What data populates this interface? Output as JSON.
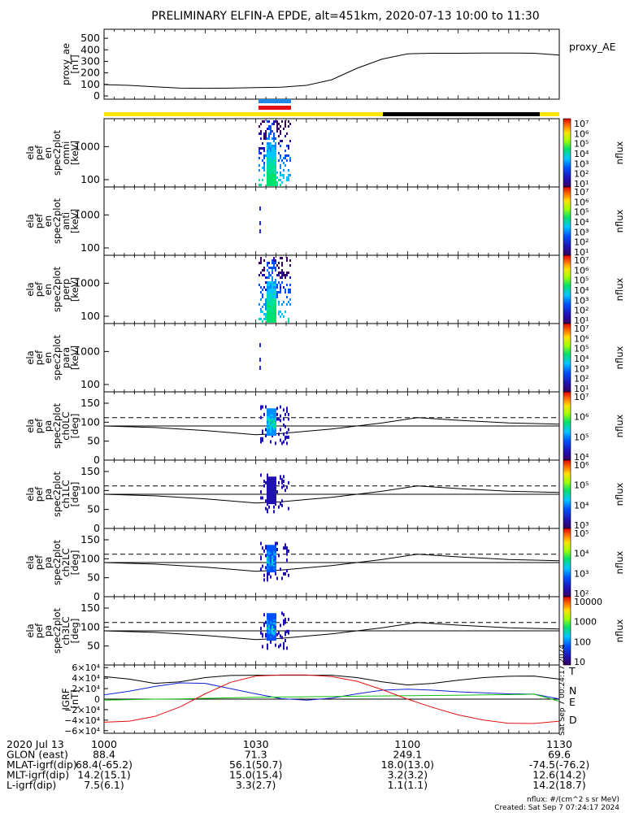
{
  "title": "PRELIMINARY ELFIN-A EPDE, alt=451km, 2020-07-13 10:00 to 11:30",
  "colors": {
    "orbit_yellow": "#ffe500",
    "orbit_black": "#000000",
    "science_blue": "#1e88e5",
    "science_red": "#e01010",
    "grf_T": "#000000",
    "grf_N": "#1020d0",
    "grf_E": "#10c010",
    "grf_D": "#e01010"
  },
  "chart_data": [
    {
      "type": "line",
      "panel": "proxy_ae",
      "ylabel": [
        "proxy_ae",
        "[nT]"
      ],
      "legend": "proxy_AE",
      "yticks": [
        "500",
        "400",
        "300",
        "200",
        "100",
        "0"
      ],
      "ylim": [
        0,
        550
      ],
      "x_minutes": [
        0,
        5,
        10,
        15,
        20,
        25,
        30,
        35,
        40,
        45,
        50,
        55,
        60,
        65,
        70,
        75,
        80,
        85,
        90
      ],
      "values": [
        98,
        92,
        80,
        68,
        66,
        68,
        72,
        76,
        92,
        140,
        240,
        320,
        365,
        370,
        370,
        372,
        372,
        370,
        355
      ]
    },
    {
      "type": "heatmap",
      "panel": "energy-omni",
      "ylabel": [
        "ela",
        "pef",
        "en",
        "spec2plot",
        "omni",
        "[keV]"
      ],
      "yticks": [
        "1000",
        "100"
      ],
      "colorbar": {
        "label": "nflux",
        "ticks": [
          "10⁷",
          "10⁶",
          "10⁵",
          "10⁴",
          "10³",
          "10²",
          "10¹"
        ]
      }
    },
    {
      "type": "heatmap",
      "panel": "energy-anti",
      "ylabel": [
        "ela",
        "pef",
        "en",
        "spec2plot",
        "anti",
        "[keV]"
      ],
      "yticks": [
        "1000",
        "100"
      ],
      "colorbar": {
        "label": "nflux",
        "ticks": [
          "10⁷",
          "10⁶",
          "10⁵",
          "10⁴",
          "10³",
          "10²",
          "10¹"
        ]
      }
    },
    {
      "type": "heatmap",
      "panel": "energy-perp",
      "ylabel": [
        "ela",
        "pef",
        "en",
        "spec2plot",
        "perp",
        "[keV]"
      ],
      "yticks": [
        "1000",
        "100"
      ],
      "colorbar": {
        "label": "nflux",
        "ticks": [
          "10⁷",
          "10⁶",
          "10⁵",
          "10⁴",
          "10³",
          "10²",
          "10¹"
        ]
      }
    },
    {
      "type": "heatmap",
      "panel": "energy-para",
      "ylabel": [
        "ela",
        "pef",
        "en",
        "spec2plot",
        "para",
        "[keV]"
      ],
      "yticks": [
        "1000",
        "100"
      ],
      "colorbar": {
        "label": "nflux",
        "ticks": [
          "10⁷",
          "10⁶",
          "10⁵",
          "10⁴",
          "10³",
          "10²",
          "10¹"
        ]
      }
    },
    {
      "type": "heatmap",
      "panel": "pitch-ch0",
      "ylabel": [
        "ela",
        "pef",
        "pa",
        "spec2plot",
        "ch0LC",
        "[deg]"
      ],
      "yticks": [
        "150",
        "100",
        "50",
        "0"
      ],
      "ylim": [
        0,
        180
      ],
      "colorbar": {
        "label": "nflux",
        "ticks": [
          "10⁷",
          "10⁶",
          "10⁵",
          "10⁴"
        ]
      }
    },
    {
      "type": "heatmap",
      "panel": "pitch-ch1",
      "ylabel": [
        "ela",
        "pef",
        "pa",
        "spec2plot",
        "ch1LC",
        "[deg]"
      ],
      "yticks": [
        "150",
        "100",
        "50",
        "0"
      ],
      "ylim": [
        0,
        180
      ],
      "colorbar": {
        "label": "nflux",
        "ticks": [
          "10⁶",
          "10⁵",
          "10⁴",
          "10³"
        ]
      }
    },
    {
      "type": "heatmap",
      "panel": "pitch-ch2",
      "ylabel": [
        "ela",
        "pef",
        "pa",
        "spec2plot",
        "ch2LC",
        "[deg]"
      ],
      "yticks": [
        "150",
        "100",
        "50",
        "0"
      ],
      "ylim": [
        0,
        180
      ],
      "colorbar": {
        "label": "nflux",
        "ticks": [
          "10⁵",
          "10⁴",
          "10³",
          "10²"
        ]
      }
    },
    {
      "type": "heatmap",
      "panel": "pitch-ch3",
      "ylabel": [
        "ela",
        "pef",
        "pa",
        "spec2plot",
        "ch3LC",
        "[deg]"
      ],
      "yticks": [
        "150",
        "100",
        "50"
      ],
      "ylim": [
        0,
        180
      ],
      "colorbar": {
        "label": "nflux",
        "ticks": [
          "10000",
          "1000",
          "100",
          "10"
        ]
      }
    },
    {
      "type": "line",
      "panel": "igrf",
      "ylabel": [
        "IGRF",
        "[nT]"
      ],
      "yticks": [
        "6×10⁴",
        "4×10⁴",
        "2×10⁴",
        "0",
        "−2×10⁴",
        "−4×10⁴",
        "−6×10⁴"
      ],
      "ylim": [
        -65000,
        65000
      ],
      "x_minutes": [
        0,
        5,
        10,
        15,
        20,
        25,
        30,
        35,
        40,
        45,
        50,
        55,
        60,
        65,
        70,
        75,
        80,
        85,
        90
      ],
      "series": [
        {
          "name": "T",
          "values": [
            43000,
            38000,
            30000,
            33000,
            41000,
            45000,
            45500,
            45500,
            45500,
            45500,
            41000,
            33000,
            27000,
            30000,
            36000,
            41000,
            43500,
            44000,
            38000
          ]
        },
        {
          "name": "N",
          "values": [
            8000,
            15000,
            24000,
            31000,
            30000,
            20000,
            10000,
            1000,
            -2000,
            2000,
            10000,
            17000,
            19000,
            17000,
            14000,
            12000,
            10000,
            9500,
            500
          ]
        },
        {
          "name": "E",
          "values": [
            -2000,
            -1000,
            0,
            500,
            1500,
            2500,
            3500,
            4000,
            4500,
            5000,
            5500,
            6000,
            6500,
            7000,
            7500,
            8000,
            8500,
            9500,
            -4000
          ]
        },
        {
          "name": "D",
          "values": [
            -44000,
            -42000,
            -33000,
            -15000,
            10000,
            32000,
            44000,
            46000,
            46000,
            43000,
            34000,
            18000,
            0,
            -16000,
            -30000,
            -40000,
            -46000,
            -46500,
            -42000
          ]
        }
      ]
    }
  ],
  "x_axis": {
    "ticks": [
      "1000",
      "1030",
      "1100",
      "1130"
    ],
    "rows": [
      {
        "label": "2020 Jul 13",
        "values": [
          "",
          "",
          "",
          ""
        ]
      },
      {
        "label": "GLON (east)",
        "values": [
          "88.4",
          "71.3",
          "249.1",
          "69.6"
        ]
      },
      {
        "label": "MLAT-igrf(dip)",
        "values": [
          "68.4(-65.2)",
          "56.1(50.7)",
          "18.0(13.0)",
          "-74.5(-76.2)"
        ]
      },
      {
        "label": "MLT-igrf(dip)",
        "values": [
          "14.2(15.1)",
          "15.0(15.4)",
          "3.2(3.2)",
          "12.6(14.2)"
        ]
      },
      {
        "label": "L-igrf(dip)",
        "values": [
          "7.5(6.1)",
          "3.3(2.7)",
          "1.1(1.1)",
          "14.2(18.7)"
        ]
      }
    ]
  },
  "side_stamp": "Sat Sep  7 00:24:17 2024",
  "footer": {
    "units": "nflux: #/(cm^2 s sr MeV)",
    "created": "Created: Sat Sep  7 07:24:17 2024"
  }
}
